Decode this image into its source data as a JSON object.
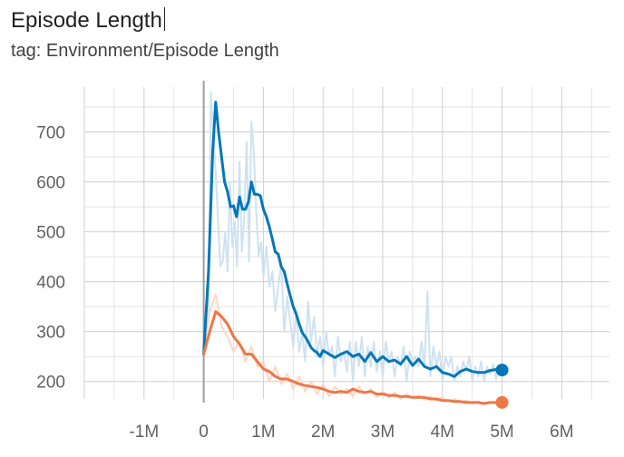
{
  "chart_data": {
    "type": "line",
    "title": "Episode Length",
    "subtitle": "tag: Environment/Episode Length",
    "xlim": [
      -2000000,
      6800000
    ],
    "ylim": [
      165,
      790
    ],
    "x_ticks": [
      -1000000,
      0,
      1000000,
      2000000,
      3000000,
      4000000,
      5000000,
      6000000
    ],
    "x_tick_labels": [
      "-1M",
      "0",
      "1M",
      "2M",
      "3M",
      "4M",
      "5M",
      "6M"
    ],
    "y_ticks": [
      200,
      300,
      400,
      500,
      600,
      700
    ],
    "y_tick_labels": [
      "200",
      "300",
      "400",
      "500",
      "600",
      "700"
    ],
    "grid": true,
    "series": [
      {
        "color": "#0077bb",
        "raw_color": "#cfe2f0",
        "x": [
          0,
          0.08,
          0.15,
          0.2,
          0.25,
          0.3,
          0.35,
          0.4,
          0.45,
          0.5,
          0.55,
          0.6,
          0.65,
          0.7,
          0.75,
          0.8,
          0.85,
          0.9,
          0.95,
          1.0,
          1.05,
          1.1,
          1.15,
          1.2,
          1.25,
          1.3,
          1.35,
          1.4,
          1.45,
          1.5,
          1.55,
          1.6,
          1.65,
          1.7,
          1.75,
          1.8,
          1.85,
          1.9,
          1.95,
          2.0,
          2.1,
          2.2,
          2.3,
          2.4,
          2.5,
          2.6,
          2.7,
          2.8,
          2.9,
          3.0,
          3.1,
          3.2,
          3.3,
          3.4,
          3.5,
          3.6,
          3.7,
          3.8,
          3.9,
          4.0,
          4.1,
          4.2,
          4.3,
          4.4,
          4.5,
          4.6,
          4.7,
          4.8,
          4.9,
          5.0
        ],
        "y": [
          255,
          420,
          660,
          760,
          700,
          650,
          600,
          580,
          550,
          552,
          530,
          570,
          545,
          545,
          560,
          600,
          575,
          575,
          572,
          545,
          530,
          510,
          485,
          460,
          455,
          430,
          420,
          395,
          372,
          350,
          335,
          315,
          298,
          290,
          280,
          268,
          262,
          258,
          250,
          262,
          255,
          248,
          255,
          260,
          250,
          255,
          240,
          258,
          240,
          250,
          240,
          243,
          235,
          250,
          232,
          245,
          230,
          225,
          230,
          218,
          215,
          210,
          220,
          225,
          220,
          218,
          218,
          222,
          224,
          223
        ],
        "raw_x": [
          0,
          0.08,
          0.12,
          0.16,
          0.2,
          0.24,
          0.28,
          0.32,
          0.36,
          0.4,
          0.44,
          0.48,
          0.52,
          0.56,
          0.6,
          0.64,
          0.68,
          0.72,
          0.76,
          0.8,
          0.84,
          0.88,
          0.92,
          0.96,
          1.0,
          1.05,
          1.1,
          1.15,
          1.2,
          1.25,
          1.3,
          1.35,
          1.4,
          1.45,
          1.5,
          1.55,
          1.6,
          1.65,
          1.7,
          1.75,
          1.8,
          1.85,
          1.9,
          1.95,
          2.0,
          2.05,
          2.1,
          2.15,
          2.2,
          2.25,
          2.3,
          2.35,
          2.4,
          2.45,
          2.5,
          2.55,
          2.6,
          2.65,
          2.7,
          2.75,
          2.8,
          2.85,
          2.9,
          2.95,
          3.0,
          3.05,
          3.1,
          3.15,
          3.2,
          3.25,
          3.3,
          3.35,
          3.4,
          3.45,
          3.5,
          3.55,
          3.6,
          3.65,
          3.7,
          3.75,
          3.8,
          3.85,
          3.9,
          3.95,
          4.0,
          4.05,
          4.1,
          4.15,
          4.2,
          4.25,
          4.3,
          4.35,
          4.4,
          4.45,
          4.5,
          4.55,
          4.6,
          4.65,
          4.7,
          4.75,
          4.8,
          4.85,
          4.9,
          4.95,
          5.0
        ],
        "raw_y": [
          260,
          330,
          780,
          700,
          620,
          520,
          430,
          440,
          500,
          420,
          600,
          470,
          520,
          430,
          640,
          460,
          530,
          680,
          440,
          720,
          660,
          540,
          450,
          480,
          410,
          470,
          390,
          420,
          340,
          390,
          440,
          300,
          370,
          320,
          270,
          340,
          260,
          300,
          240,
          360,
          280,
          330,
          250,
          290,
          230,
          300,
          250,
          270,
          210,
          290,
          240,
          260,
          220,
          280,
          200,
          280,
          230,
          290,
          210,
          270,
          230,
          280,
          220,
          260,
          210,
          280,
          240,
          260,
          210,
          250,
          230,
          270,
          200,
          260,
          240,
          250,
          230,
          280,
          230,
          380,
          210,
          270,
          230,
          260,
          200,
          250,
          230,
          250,
          200,
          230,
          210,
          240,
          220,
          250,
          200,
          230,
          210,
          240,
          200,
          230,
          215,
          235,
          205,
          230,
          220
        ]
      },
      {
        "color": "#ee7747",
        "raw_color": "#fbd7c7",
        "x": [
          0,
          0.1,
          0.2,
          0.3,
          0.4,
          0.5,
          0.6,
          0.7,
          0.8,
          0.9,
          1.0,
          1.1,
          1.2,
          1.3,
          1.4,
          1.5,
          1.6,
          1.7,
          1.8,
          1.9,
          2.0,
          2.1,
          2.2,
          2.3,
          2.4,
          2.5,
          2.6,
          2.7,
          2.8,
          2.9,
          3.0,
          3.1,
          3.2,
          3.3,
          3.4,
          3.5,
          3.6,
          3.7,
          3.8,
          3.9,
          4.0,
          4.1,
          4.2,
          4.3,
          4.4,
          4.5,
          4.6,
          4.7,
          4.8,
          4.9,
          5.0
        ],
        "y": [
          255,
          300,
          340,
          330,
          315,
          290,
          275,
          255,
          255,
          240,
          225,
          220,
          210,
          205,
          205,
          200,
          195,
          192,
          190,
          188,
          185,
          180,
          178,
          180,
          178,
          185,
          180,
          178,
          180,
          175,
          175,
          172,
          172,
          170,
          170,
          168,
          168,
          168,
          165,
          165,
          162,
          162,
          160,
          160,
          158,
          158,
          158,
          156,
          158,
          158,
          158
        ],
        "raw_x": [
          0,
          0.1,
          0.2,
          0.3,
          0.4,
          0.5,
          0.6,
          0.7,
          0.8,
          0.9,
          1.0,
          1.1,
          1.2,
          1.3,
          1.4,
          1.5,
          1.6,
          1.7,
          1.8,
          1.9,
          2.0,
          2.1,
          2.2,
          2.3,
          2.4,
          2.5,
          2.6,
          2.7,
          2.8,
          2.9,
          3.0,
          3.1,
          3.2,
          3.3,
          3.4,
          3.5,
          3.6,
          3.7,
          3.8,
          3.9,
          4.0,
          4.1,
          4.2,
          4.3,
          4.4,
          4.5,
          4.6,
          4.7,
          4.8,
          4.9,
          5.0
        ],
        "raw_y": [
          260,
          340,
          375,
          310,
          290,
          260,
          280,
          240,
          270,
          230,
          240,
          200,
          230,
          195,
          215,
          185,
          210,
          180,
          200,
          175,
          195,
          170,
          190,
          175,
          185,
          170,
          190,
          175,
          185,
          168,
          180,
          168,
          178,
          165,
          175,
          168,
          172,
          165,
          170,
          162,
          168,
          160,
          165,
          158,
          162,
          156,
          160,
          154,
          158,
          156,
          160
        ]
      }
    ]
  }
}
